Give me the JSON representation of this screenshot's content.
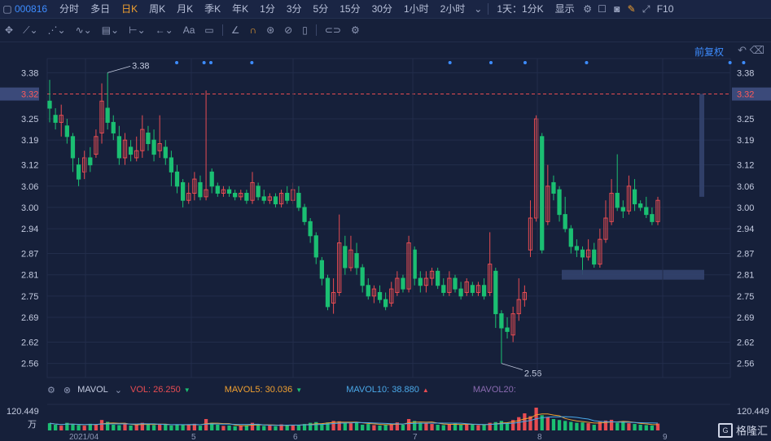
{
  "toolbar": {
    "code": "000816",
    "periods": [
      "分时",
      "多日",
      "日K",
      "周K",
      "月K",
      "季K",
      "年K",
      "1分",
      "3分",
      "5分",
      "15分",
      "30分",
      "1小时",
      "2小时"
    ],
    "active_period": "日K",
    "period_select": "1天：1分K",
    "display_label": "显示",
    "f10": "F10"
  },
  "tools": {
    "text_tool": "Aa"
  },
  "adjust_label": "前复权",
  "chart_data": {
    "type": "candlestick",
    "y_ticks": [
      "3.38",
      "3.32",
      "3.25",
      "3.19",
      "3.12",
      "3.06",
      "3.00",
      "2.94",
      "2.87",
      "2.81",
      "2.75",
      "2.69",
      "2.62",
      "2.56"
    ],
    "current_price": "3.32",
    "high_label": "3.38",
    "low_label": "2.56",
    "x_labels": [
      "2021/04",
      "5",
      "6",
      "7",
      "8",
      "9"
    ],
    "ylim": [
      2.52,
      3.42
    ],
    "colors": {
      "up": "#e84c52",
      "down": "#1bbf72",
      "bg": "#16203a",
      "grid": "#222d4b"
    },
    "candles": [
      [
        3.3,
        3.28,
        3.36,
        3.24
      ],
      [
        3.26,
        3.24,
        3.28,
        3.22
      ],
      [
        3.24,
        3.26,
        3.29,
        3.2
      ],
      [
        3.23,
        3.2,
        3.25,
        3.18
      ],
      [
        3.2,
        3.14,
        3.21,
        3.1
      ],
      [
        3.12,
        3.08,
        3.14,
        3.06
      ],
      [
        3.1,
        3.14,
        3.16,
        3.08
      ],
      [
        3.14,
        3.12,
        3.17,
        3.1
      ],
      [
        3.15,
        3.2,
        3.22,
        3.14
      ],
      [
        3.21,
        3.3,
        3.35,
        3.18
      ],
      [
        3.28,
        3.24,
        3.38,
        3.22
      ],
      [
        3.24,
        3.21,
        3.26,
        3.19
      ],
      [
        3.2,
        3.14,
        3.23,
        3.12
      ],
      [
        3.14,
        3.19,
        3.21,
        3.12
      ],
      [
        3.17,
        3.15,
        3.19,
        3.13
      ],
      [
        3.14,
        3.16,
        3.2,
        3.13
      ],
      [
        3.16,
        3.22,
        3.26,
        3.14
      ],
      [
        3.21,
        3.18,
        3.23,
        3.16
      ],
      [
        3.19,
        3.15,
        3.22,
        3.13
      ],
      [
        3.16,
        3.18,
        3.26,
        3.14
      ],
      [
        3.17,
        3.14,
        3.19,
        3.12
      ],
      [
        3.14,
        3.1,
        3.16,
        3.06
      ],
      [
        3.1,
        3.06,
        3.12,
        3.04
      ],
      [
        3.07,
        3.02,
        3.08,
        3.0
      ],
      [
        3.02,
        3.04,
        3.07,
        3.01
      ],
      [
        3.04,
        3.08,
        3.1,
        3.02
      ],
      [
        3.07,
        3.03,
        3.09,
        3.02
      ],
      [
        3.03,
        3.05,
        3.33,
        3.02
      ],
      [
        3.1,
        3.06,
        3.11,
        3.04
      ],
      [
        3.06,
        3.04,
        3.07,
        3.03
      ],
      [
        3.04,
        3.05,
        3.06,
        3.03
      ],
      [
        3.05,
        3.04,
        3.06,
        3.03
      ],
      [
        3.04,
        3.03,
        3.05,
        3.02
      ],
      [
        3.03,
        3.04,
        3.05,
        3.02
      ],
      [
        3.04,
        3.02,
        3.05,
        3.01
      ],
      [
        3.02,
        3.07,
        3.1,
        3.01
      ],
      [
        3.06,
        3.03,
        3.07,
        3.02
      ],
      [
        3.03,
        3.02,
        3.05,
        3.01
      ],
      [
        3.02,
        3.03,
        3.04,
        3.01
      ],
      [
        3.03,
        3.01,
        3.04,
        3.0
      ],
      [
        3.01,
        3.04,
        3.05,
        3.0
      ],
      [
        3.04,
        3.02,
        3.06,
        3.01
      ],
      [
        3.02,
        3.05,
        3.07,
        3.01
      ],
      [
        3.04,
        3.0,
        3.06,
        2.99
      ],
      [
        3.0,
        2.96,
        3.01,
        2.95
      ],
      [
        2.96,
        2.92,
        2.97,
        2.9
      ],
      [
        2.92,
        2.86,
        2.93,
        2.84
      ],
      [
        2.85,
        2.8,
        2.86,
        2.78
      ],
      [
        2.8,
        2.72,
        2.81,
        2.71
      ],
      [
        2.73,
        2.76,
        2.8,
        2.7
      ],
      [
        2.76,
        2.9,
        2.98,
        2.75
      ],
      [
        2.89,
        2.83,
        2.92,
        2.81
      ],
      [
        2.83,
        2.88,
        2.92,
        2.82
      ],
      [
        2.87,
        2.83,
        2.9,
        2.81
      ],
      [
        2.83,
        2.78,
        2.84,
        2.76
      ],
      [
        2.78,
        2.75,
        2.8,
        2.74
      ],
      [
        2.75,
        2.77,
        2.78,
        2.73
      ],
      [
        2.76,
        2.74,
        2.78,
        2.73
      ],
      [
        2.74,
        2.72,
        2.76,
        2.71
      ],
      [
        2.73,
        2.77,
        2.79,
        2.72
      ],
      [
        2.76,
        2.8,
        2.82,
        2.75
      ],
      [
        2.8,
        2.77,
        2.81,
        2.76
      ],
      [
        2.77,
        2.9,
        2.92,
        2.76
      ],
      [
        2.88,
        2.8,
        2.89,
        2.78
      ],
      [
        2.8,
        2.78,
        2.82,
        2.76
      ],
      [
        2.78,
        2.8,
        2.82,
        2.76
      ],
      [
        2.8,
        2.82,
        2.83,
        2.78
      ],
      [
        2.82,
        2.78,
        2.83,
        2.77
      ],
      [
        2.78,
        2.76,
        2.8,
        2.75
      ],
      [
        2.76,
        2.8,
        2.82,
        2.75
      ],
      [
        2.8,
        2.77,
        2.81,
        2.76
      ],
      [
        2.77,
        2.75,
        2.79,
        2.74
      ],
      [
        2.76,
        2.79,
        2.8,
        2.75
      ],
      [
        2.78,
        2.76,
        2.79,
        2.75
      ],
      [
        2.76,
        2.78,
        2.79,
        2.75
      ],
      [
        2.78,
        2.75,
        2.8,
        2.74
      ],
      [
        2.76,
        2.84,
        2.93,
        2.75
      ],
      [
        2.82,
        2.7,
        2.83,
        2.66
      ],
      [
        2.7,
        2.66,
        2.71,
        2.56
      ],
      [
        2.66,
        2.65,
        2.69,
        2.63
      ],
      [
        2.64,
        2.7,
        2.72,
        2.62
      ],
      [
        2.7,
        2.74,
        2.8,
        2.68
      ],
      [
        2.74,
        2.76,
        2.78,
        2.72
      ],
      [
        2.88,
        2.97,
        3.02,
        2.86
      ],
      [
        2.97,
        3.25,
        3.26,
        2.96
      ],
      [
        3.2,
        2.88,
        3.21,
        2.87
      ],
      [
        2.96,
        3.06,
        3.12,
        2.95
      ],
      [
        3.07,
        3.04,
        3.09,
        3.02
      ],
      [
        3.05,
        2.98,
        3.06,
        2.96
      ],
      [
        2.98,
        2.94,
        3.03,
        2.93
      ],
      [
        2.94,
        2.89,
        2.95,
        2.87
      ],
      [
        2.89,
        2.88,
        2.91,
        2.86
      ],
      [
        2.88,
        2.86,
        2.89,
        2.81
      ],
      [
        2.86,
        2.88,
        2.91,
        2.85
      ],
      [
        2.88,
        2.84,
        2.9,
        2.83
      ],
      [
        2.84,
        2.91,
        2.94,
        2.83
      ],
      [
        2.91,
        2.97,
        3.02,
        2.9
      ],
      [
        2.96,
        3.04,
        3.08,
        2.95
      ],
      [
        3.04,
        3.0,
        3.15,
        2.99
      ],
      [
        3.0,
        2.99,
        3.02,
        2.97
      ],
      [
        2.99,
        3.06,
        3.09,
        2.98
      ],
      [
        3.05,
        3.01,
        3.08,
        2.99
      ],
      [
        3.01,
        3.0,
        3.02,
        2.99
      ],
      [
        3.0,
        2.98,
        3.03,
        2.97
      ],
      [
        2.98,
        2.96,
        3.0,
        2.95
      ],
      [
        2.96,
        3.02,
        3.03,
        2.95
      ]
    ],
    "volumes": [
      38,
      30,
      25,
      40,
      32,
      28,
      25,
      35,
      30,
      55,
      45,
      30,
      28,
      33,
      26,
      30,
      40,
      32,
      28,
      35,
      30,
      26,
      32,
      28,
      30,
      35,
      25,
      60,
      40,
      30,
      24,
      26,
      22,
      25,
      28,
      40,
      30,
      24,
      26,
      22,
      32,
      28,
      30,
      26,
      34,
      40,
      44,
      36,
      42,
      50,
      48,
      40,
      38,
      44,
      30,
      34,
      28,
      26,
      32,
      36,
      42,
      30,
      60,
      50,
      40,
      38,
      34,
      30,
      28,
      32,
      36,
      30,
      34,
      30,
      28,
      30,
      40,
      44,
      50,
      40,
      55,
      70,
      90,
      75,
      120,
      80,
      70,
      60,
      55,
      50,
      45,
      40,
      42,
      38,
      30,
      46,
      52,
      56,
      40,
      44,
      38,
      34,
      30,
      28,
      26,
      36
    ],
    "volume_max_label": "120.449",
    "volume_unit": "万"
  },
  "mavol": {
    "label": "MAVOL",
    "vol": "VOL: 26.250",
    "mavol5": "MAVOL5: 30.036",
    "mavol10": "MAVOL10: 38.880",
    "mavol20": "MAVOL20:"
  },
  "brand": "格隆汇"
}
